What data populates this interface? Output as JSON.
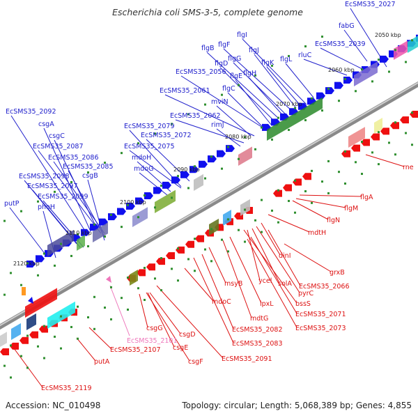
{
  "title": "Escherichia coli SMS-3-5, complete genome",
  "accession": "Accession: NC_010498",
  "summary": "Topology: circular; Length: 5,068,389 bp; Genes: 4,855",
  "colors": {
    "forward_label": "#2020cc",
    "reverse_label": "#dd1111",
    "pseudo_label": "#ee77bb",
    "forward_feature": "#1010ee",
    "reverse_feature": "#ee1010",
    "backbone": "#8a8a8a",
    "tick": "#2f8f2f"
  },
  "scale_marks": [
    "2050 kbp",
    "2060 kbp",
    "2070 kbp",
    "2080 kbp",
    "2090 kbp",
    "2100 kbp",
    "2110 kbp",
    "2120 kbp"
  ],
  "forward_labels": [
    "EcSMS35_2027",
    "fabG",
    "EcSMS35_2039",
    "rluC",
    "flgI",
    "flgF",
    "flgB",
    "flgG",
    "flgJ",
    "flgD",
    "flgK",
    "flgL",
    "EcSMS35_2056",
    "flgE",
    "flgH",
    "EcSMS35_2061",
    "flgC",
    "mviN",
    "EcSMS35_2062",
    "rimJ",
    "EcSMS35_2079",
    "EcSMS35_2072",
    "EcSMS35_2075",
    "mdoH",
    "mdoG",
    "EcSMS35_2092",
    "csgA",
    "csgC",
    "EcSMS35_2087",
    "EcSMS35_2086",
    "EcSMS35_2085",
    "EcSMS35_2098",
    "csgB",
    "EcSMS35_2097",
    "EcSMS35_2099",
    "putP",
    "phoH"
  ],
  "reverse_labels": [
    "rne",
    "flgA",
    "flgM",
    "flgN",
    "mdtH",
    "grxB",
    "dinI",
    "msyB",
    "ycel",
    "pyrC",
    "solA",
    "EcSMS35_2066",
    "bssS",
    "lpxL",
    "mdtG",
    "EcSMS35_2071",
    "EcSMS35_2073",
    "mdoC",
    "EcSMS35_2082",
    "EcSMS35_2083",
    "csgG",
    "csgD",
    "csgE",
    "csgF",
    "EcSMS35_2091",
    "EcSMS35_2107",
    "putA",
    "EcSMS35_2119"
  ],
  "pseudo_labels": [
    "EcSMS35_2101"
  ]
}
